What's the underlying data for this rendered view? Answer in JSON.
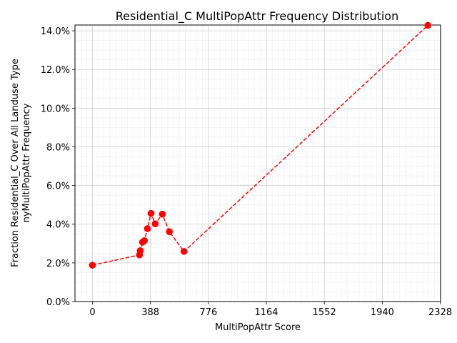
{
  "chart_data": {
    "type": "line",
    "title": "Residential_C MultiPopAttr Frequency Distribution",
    "xlabel": "MultiPopAttr Score",
    "ylabel_line1": "Fraction Residential_C Over All Landuse Type",
    "ylabel_line2": "nyMultiPopAttr Frequency",
    "xlim": [
      -117,
      2330
    ],
    "ylim": [
      0,
      14.3
    ],
    "x_ticks": [
      0,
      388,
      776,
      1164,
      1552,
      1940,
      2328
    ],
    "x_tick_labels": [
      "0",
      "388",
      "776",
      "1164",
      "1552",
      "1940",
      "2328"
    ],
    "y_ticks": [
      0,
      2,
      4,
      6,
      8,
      10,
      12,
      14
    ],
    "y_tick_labels": [
      "0.0%",
      "2.0%",
      "4.0%",
      "6.0%",
      "8.0%",
      "10.0%",
      "12.0%",
      "14.0%"
    ],
    "grid": true,
    "minor_grid": true,
    "series": [
      {
        "color": "#ff0000",
        "line_style": "dashed",
        "marker": "circle",
        "points": [
          {
            "x": 0,
            "y": 1.88
          },
          {
            "x": 315,
            "y": 2.41
          },
          {
            "x": 320,
            "y": 2.63
          },
          {
            "x": 335,
            "y": 3.07
          },
          {
            "x": 348,
            "y": 3.15
          },
          {
            "x": 368,
            "y": 3.77
          },
          {
            "x": 392,
            "y": 4.56
          },
          {
            "x": 420,
            "y": 4.02
          },
          {
            "x": 468,
            "y": 4.52
          },
          {
            "x": 515,
            "y": 3.61
          },
          {
            "x": 613,
            "y": 2.59
          },
          {
            "x": 2245,
            "y": 14.28
          }
        ]
      }
    ]
  }
}
